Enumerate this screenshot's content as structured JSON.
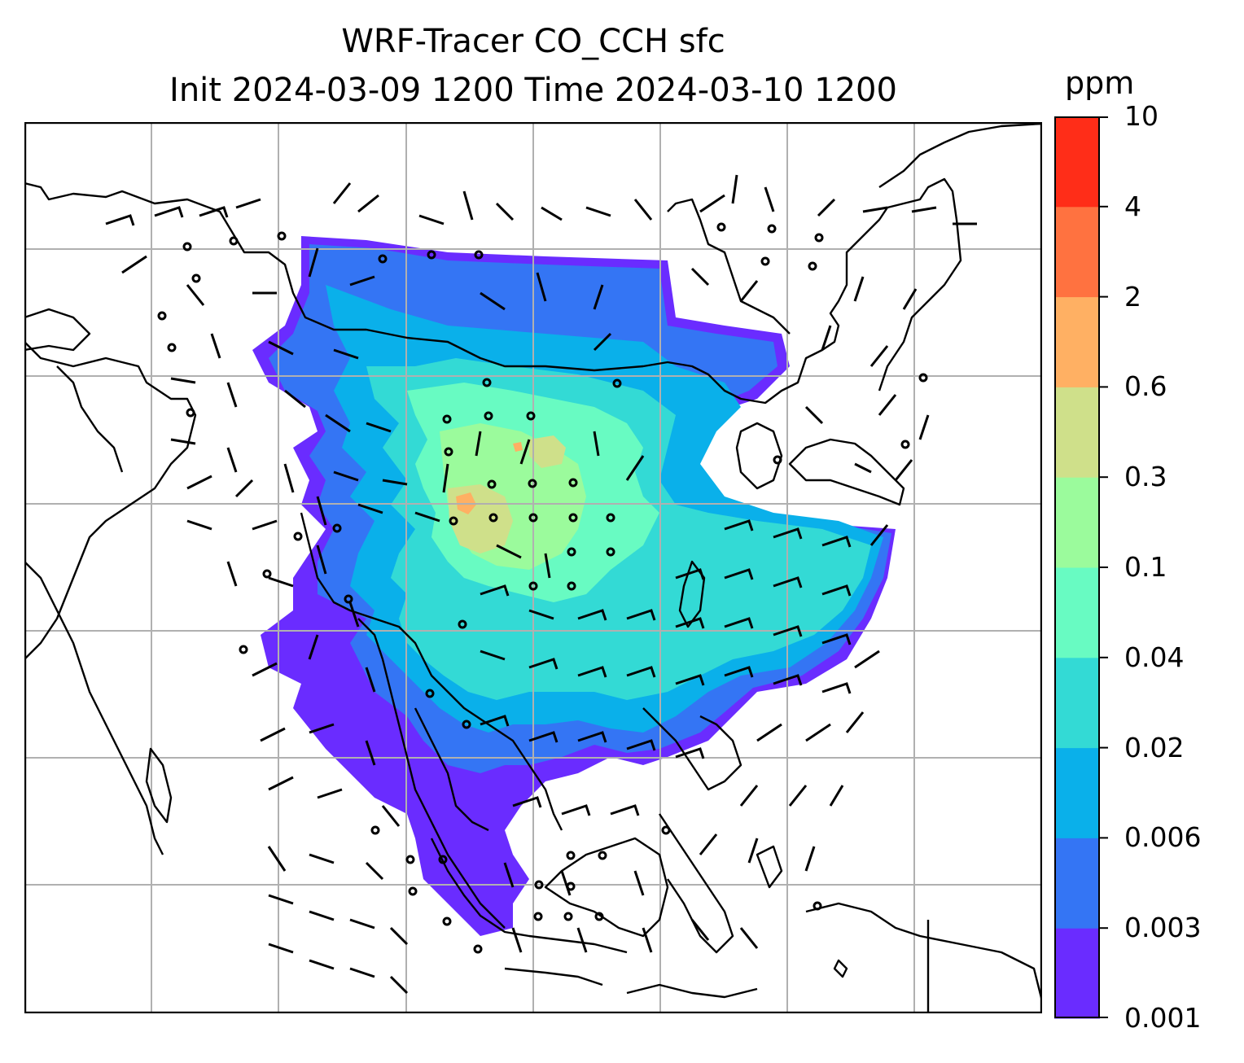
{
  "title": {
    "line1": "WRF-Tracer CO_CCH sfc",
    "line2": "Init 2024-03-09 1200 Time 2024-03-10 1200"
  },
  "colorbar": {
    "unit": "ppm",
    "levels": [
      "0.001",
      "0.003",
      "0.006",
      "0.02",
      "0.04",
      "0.1",
      "0.3",
      "0.6",
      "2",
      "4",
      "10"
    ],
    "colors": [
      "#6a2cff",
      "#3475f4",
      "#0ab0ea",
      "#33dad5",
      "#68fbc2",
      "#9bfb9c",
      "#cfe08a",
      "#ffb063",
      "#ff7240",
      "#ff2d18"
    ]
  },
  "map": {
    "projection": "lat-lon",
    "gridlines": true,
    "coastlines": true,
    "wind_barbs": true,
    "region": "East and Southeast Asia"
  }
}
